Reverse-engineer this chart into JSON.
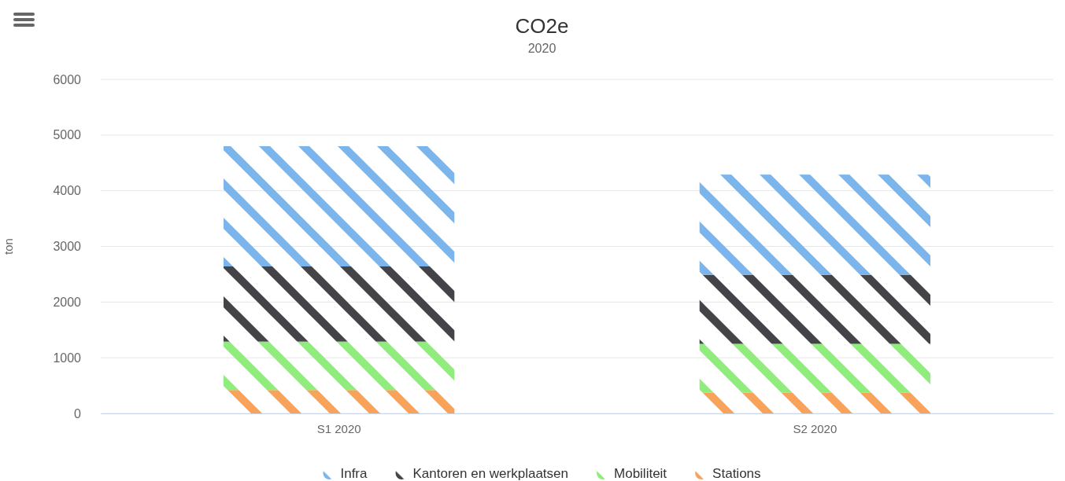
{
  "chart_data": {
    "type": "bar",
    "title": "CO2e",
    "subtitle": "2020",
    "ylabel": "ton",
    "categories": [
      "S1 2020",
      "S2 2020"
    ],
    "stacked": true,
    "ylim": [
      0,
      6000
    ],
    "yticks": [
      0,
      1000,
      2000,
      3000,
      4000,
      5000,
      6000
    ],
    "grid": "y",
    "legend": "bottom",
    "series": [
      {
        "name": "Stations",
        "color": "#f7a35c",
        "values": [
          420,
          370
        ]
      },
      {
        "name": "Mobiliteit",
        "color": "#90ed7d",
        "values": [
          870,
          880
        ]
      },
      {
        "name": "Kantoren en werkplaatsen",
        "color": "#434348",
        "values": [
          1350,
          1240
        ]
      },
      {
        "name": "Infra",
        "color": "#7cb5ec",
        "values": [
          2160,
          1800
        ]
      }
    ]
  }
}
